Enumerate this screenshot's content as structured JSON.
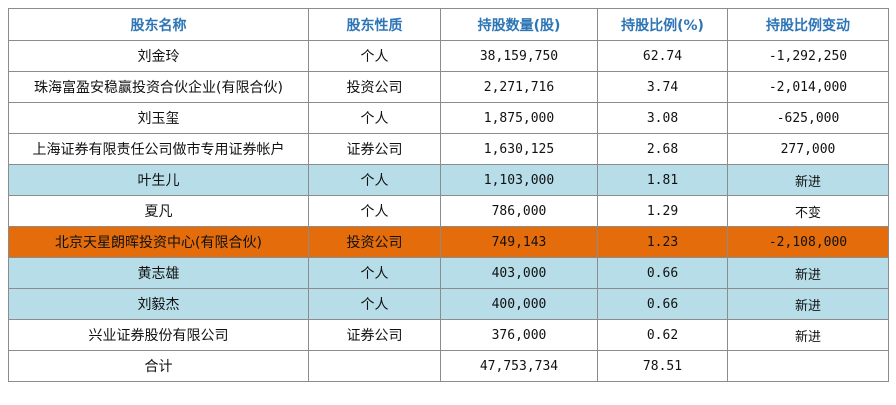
{
  "table": {
    "header": [
      "股东名称",
      "股东性质",
      "持股数量(股)",
      "持股比例(%)",
      "持股比例变动"
    ],
    "rows": [
      [
        "刘金玲",
        "个人",
        "38,159,750",
        "62.74",
        "-1,292,250"
      ],
      [
        "珠海富盈安稳赢投资合伙企业(有限合伙)",
        "投资公司",
        "2,271,716",
        "3.74",
        "-2,014,000"
      ],
      [
        "刘玉玺",
        "个人",
        "1,875,000",
        "3.08",
        "-625,000"
      ],
      [
        "上海证券有限责任公司做市专用证券帐户",
        "证券公司",
        "1,630,125",
        "2.68",
        "277,000"
      ],
      [
        "叶生儿",
        "个人",
        "1,103,000",
        "1.81",
        "新进"
      ],
      [
        "夏凡",
        "个人",
        "786,000",
        "1.29",
        "不变"
      ],
      [
        "北京天星朗晖投资中心(有限合伙)",
        "投资公司",
        "749,143",
        "1.23",
        "-2,108,000"
      ],
      [
        "黄志雄",
        "个人",
        "403,000",
        "0.66",
        "新进"
      ],
      [
        "刘毅杰",
        "个人",
        "400,000",
        "0.66",
        "新进"
      ],
      [
        "兴业证券股份有限公司",
        "证券公司",
        "376,000",
        "0.62",
        "新进"
      ],
      [
        "合计",
        null,
        "47,753,734",
        "78.51",
        null
      ]
    ]
  }
}
